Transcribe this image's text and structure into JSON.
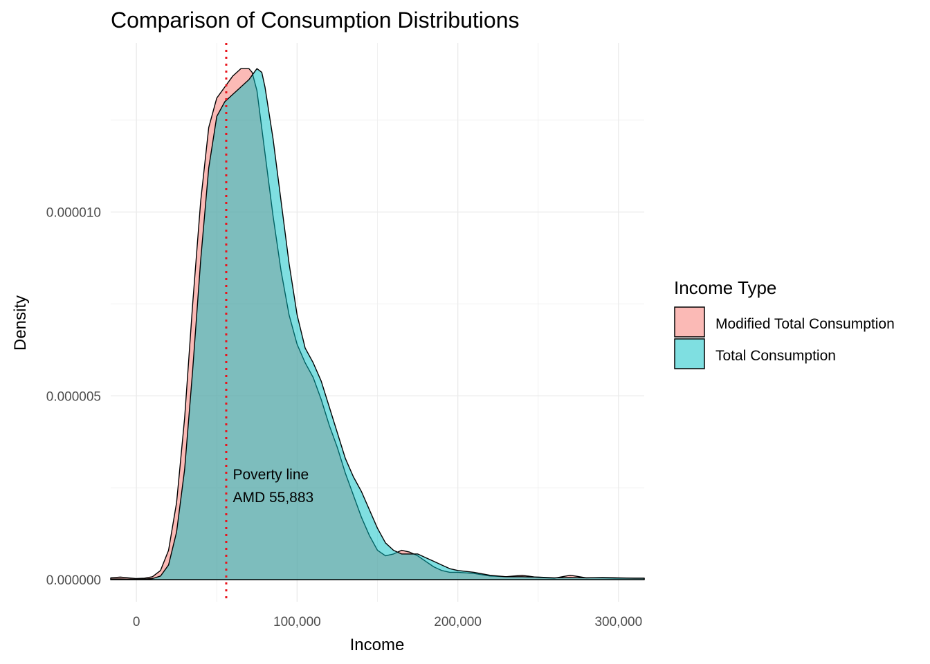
{
  "chart_data": {
    "type": "area",
    "title": "Comparison of Consumption Distributions",
    "xlabel": "Income",
    "ylabel": "Density",
    "xlim": [
      -16000,
      316000
    ],
    "ylim": [
      -6e-07,
      1.46e-05
    ],
    "x_ticks": [
      0,
      100000,
      200000,
      300000
    ],
    "x_tick_labels": [
      "0",
      "100,000",
      "200,000",
      "300,000"
    ],
    "y_ticks": [
      0,
      5e-06,
      1e-05
    ],
    "y_tick_labels": [
      "0.000000",
      "0.000005",
      "0.000010"
    ],
    "grid": true,
    "legend": {
      "title": "Income Type",
      "position": "right",
      "items": [
        {
          "label": "Modified Total Consumption",
          "color": "#F8766D"
        },
        {
          "label": "Total Consumption",
          "color": "#00BFC4"
        }
      ]
    },
    "vline": {
      "x": 55883,
      "color": "#e8141c",
      "style": "dotted"
    },
    "annotation": {
      "x": 60000,
      "y": 2.5e-06,
      "lines": [
        "Poverty line",
        "AMD 55,883"
      ]
    },
    "series": [
      {
        "name": "Modified Total Consumption",
        "color": "#F8766D",
        "x": [
          -16000,
          -10000,
          0,
          5000,
          10000,
          15000,
          20000,
          25000,
          30000,
          35000,
          40000,
          45000,
          50000,
          55000,
          60000,
          65000,
          70000,
          72000,
          75000,
          80000,
          85000,
          90000,
          95000,
          100000,
          105000,
          110000,
          115000,
          120000,
          125000,
          130000,
          135000,
          140000,
          145000,
          150000,
          155000,
          160000,
          165000,
          170000,
          175000,
          180000,
          185000,
          190000,
          195000,
          200000,
          210000,
          220000,
          230000,
          240000,
          250000,
          260000,
          270000,
          280000,
          290000,
          300000,
          310000,
          316000
        ],
        "y": [
          5e-08,
          7e-08,
          3e-08,
          4e-08,
          8e-08,
          2.5e-07,
          8e-07,
          2.1e-06,
          4.4e-06,
          7.5e-06,
          1.03e-05,
          1.23e-05,
          1.31e-05,
          1.34e-05,
          1.37e-05,
          1.39e-05,
          1.39e-05,
          1.38e-05,
          1.33e-05,
          1.16e-05,
          9.9e-06,
          8.4e-06,
          7.2e-06,
          6.4e-06,
          5.9e-06,
          5.5e-06,
          4.9e-06,
          4.2e-06,
          3.6e-06,
          2.9e-06,
          2.3e-06,
          1.7e-06,
          1.2e-06,
          8e-07,
          6.5e-07,
          7e-07,
          8e-07,
          7.5e-07,
          6.5e-07,
          5e-07,
          3.5e-07,
          2.5e-07,
          2e-07,
          2e-07,
          1.7e-07,
          1e-07,
          8e-08,
          1.2e-07,
          6e-08,
          4e-08,
          1.2e-07,
          5e-08,
          5e-08,
          4e-08,
          4e-08,
          4e-08
        ]
      },
      {
        "name": "Total Consumption",
        "color": "#00BFC4",
        "x": [
          -16000,
          -10000,
          0,
          5000,
          10000,
          15000,
          20000,
          25000,
          30000,
          35000,
          40000,
          45000,
          50000,
          55000,
          60000,
          65000,
          70000,
          75000,
          78000,
          80000,
          85000,
          90000,
          95000,
          100000,
          105000,
          110000,
          115000,
          120000,
          125000,
          130000,
          135000,
          140000,
          145000,
          150000,
          155000,
          160000,
          165000,
          170000,
          175000,
          180000,
          185000,
          190000,
          195000,
          200000,
          210000,
          220000,
          230000,
          240000,
          250000,
          260000,
          270000,
          280000,
          290000,
          300000,
          310000,
          316000
        ],
        "y": [
          2e-08,
          2e-08,
          1e-08,
          2e-08,
          3e-08,
          1e-07,
          4e-07,
          1.3e-06,
          3e-06,
          5.7e-06,
          8.7e-06,
          1.12e-05,
          1.26e-05,
          1.3e-05,
          1.32e-05,
          1.34e-05,
          1.36e-05,
          1.39e-05,
          1.38e-05,
          1.34e-05,
          1.2e-05,
          1.03e-05,
          8.6e-06,
          7.2e-06,
          6.3e-06,
          5.9e-06,
          5.4e-06,
          4.7e-06,
          4e-06,
          3.3e-06,
          2.8e-06,
          2.4e-06,
          1.9e-06,
          1.4e-06,
          1e-06,
          8e-07,
          7e-07,
          7e-07,
          7e-07,
          6e-07,
          5e-07,
          4e-07,
          3e-07,
          2.5e-07,
          2e-07,
          1.2e-07,
          8e-08,
          8e-08,
          7e-08,
          5e-08,
          6e-08,
          5e-08,
          6e-08,
          5e-08,
          4e-08,
          4e-08
        ]
      }
    ]
  }
}
